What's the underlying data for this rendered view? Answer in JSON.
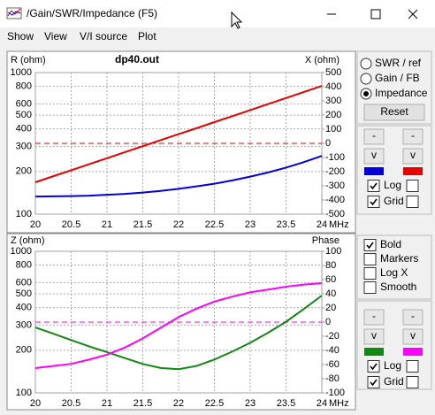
{
  "window": {
    "title": "/Gain/SWR/Impedance (F5)"
  },
  "menu": [
    {
      "label": "Show",
      "enabled": true
    },
    {
      "label": "View",
      "enabled": true
    },
    {
      "label": "V/I source",
      "enabled": false
    },
    {
      "label": "Plot",
      "enabled": true
    }
  ],
  "chart_data": [
    {
      "type": "line",
      "title": "dp40.out",
      "y_label": "R (ohm)",
      "y2_label": "X (ohm)",
      "x_label": "MHz",
      "x": [
        20,
        20.25,
        20.5,
        20.75,
        21,
        21.25,
        21.5,
        21.75,
        22,
        22.25,
        22.5,
        22.75,
        23,
        23.25,
        23.5,
        23.75,
        24
      ],
      "xlim": [
        20,
        24
      ],
      "xticks": [
        20,
        20.5,
        21,
        21.5,
        22,
        22.5,
        23,
        23.5,
        24
      ],
      "ylim": [
        100,
        1000
      ],
      "yticks": [
        100,
        200,
        300,
        400,
        500,
        600,
        800,
        1000
      ],
      "ylog": true,
      "y2lim": [
        -500,
        500
      ],
      "y2ticks": [
        -500,
        -400,
        -300,
        -200,
        -100,
        0,
        100,
        200,
        300,
        400,
        500
      ],
      "grid": true,
      "reference_y2": 0,
      "series": [
        {
          "color": "#0000e0",
          "values": [
            133,
            133.5,
            134,
            135,
            137,
            139,
            142,
            146,
            151,
            157,
            164,
            173,
            184,
            197,
            213,
            233,
            258
          ]
        },
        {
          "color": "#e80000",
          "axis": "y2",
          "values": [
            -275,
            -232,
            -190,
            -147,
            -105,
            -62,
            -20,
            23,
            65,
            107,
            150,
            192,
            235,
            278,
            320,
            363,
            406
          ]
        }
      ]
    },
    {
      "type": "line",
      "y_label": "Z (ohm)",
      "y2_label": "Phase",
      "x_label": "MHz",
      "x": [
        20,
        20.25,
        20.5,
        20.75,
        21,
        21.25,
        21.5,
        21.75,
        22,
        22.25,
        22.5,
        22.75,
        23,
        23.25,
        23.5,
        23.75,
        24
      ],
      "xlim": [
        20,
        24
      ],
      "xticks": [
        20,
        20.5,
        21,
        21.5,
        22,
        22.5,
        23,
        23.5,
        24
      ],
      "ylim": [
        100,
        1000
      ],
      "yticks": [
        100,
        200,
        300,
        400,
        500,
        600,
        800,
        1000
      ],
      "ylog": true,
      "y2lim": [
        -100,
        100
      ],
      "y2ticks": [
        -100,
        -80,
        -60,
        -40,
        -20,
        0,
        20,
        40,
        60,
        80,
        100
      ],
      "grid": true,
      "reference_y2": 0,
      "series": [
        {
          "color": "#118811",
          "values": [
            290,
            262,
            236,
            213,
            194,
            176,
            160,
            150,
            147,
            155,
            172,
            196,
            226,
            266,
            318,
            392,
            487
          ]
        },
        {
          "color": "#ff00ff",
          "axis": "y2",
          "values": [
            -65,
            -62,
            -59,
            -53,
            -46,
            -36,
            -23,
            -8,
            7,
            19,
            29,
            36,
            42,
            46,
            50,
            53,
            55
          ]
        }
      ]
    }
  ],
  "controls": {
    "modes": [
      "SWR / ref",
      "Gain / FB",
      "Impedance"
    ],
    "mode_selected": 2,
    "reset": "Reset",
    "options": [
      {
        "label": "Bold",
        "checked": true
      },
      {
        "label": "Markers",
        "checked": false
      },
      {
        "label": "Log X",
        "checked": false
      },
      {
        "label": "Smooth",
        "checked": false
      }
    ],
    "panels": [
      {
        "buttons": [
          {
            "label": "-",
            "enabled": false
          },
          {
            "label": "-",
            "enabled": true
          },
          {
            "label": "v",
            "enabled": false
          },
          {
            "label": "v",
            "enabled": true
          }
        ],
        "checks": [
          {
            "label": "Log",
            "checked": true,
            "checked2": false
          },
          {
            "label": "Grid",
            "checked": true,
            "checked2": false
          }
        ]
      },
      {
        "buttons": [
          {
            "label": "-",
            "enabled": false
          },
          {
            "label": "-",
            "enabled": true
          },
          {
            "label": "v",
            "enabled": false
          },
          {
            "label": "v",
            "enabled": true
          }
        ],
        "checks": [
          {
            "label": "Log",
            "checked": true,
            "checked2": false
          },
          {
            "label": "Grid",
            "checked": true,
            "checked2": false
          }
        ]
      }
    ]
  }
}
